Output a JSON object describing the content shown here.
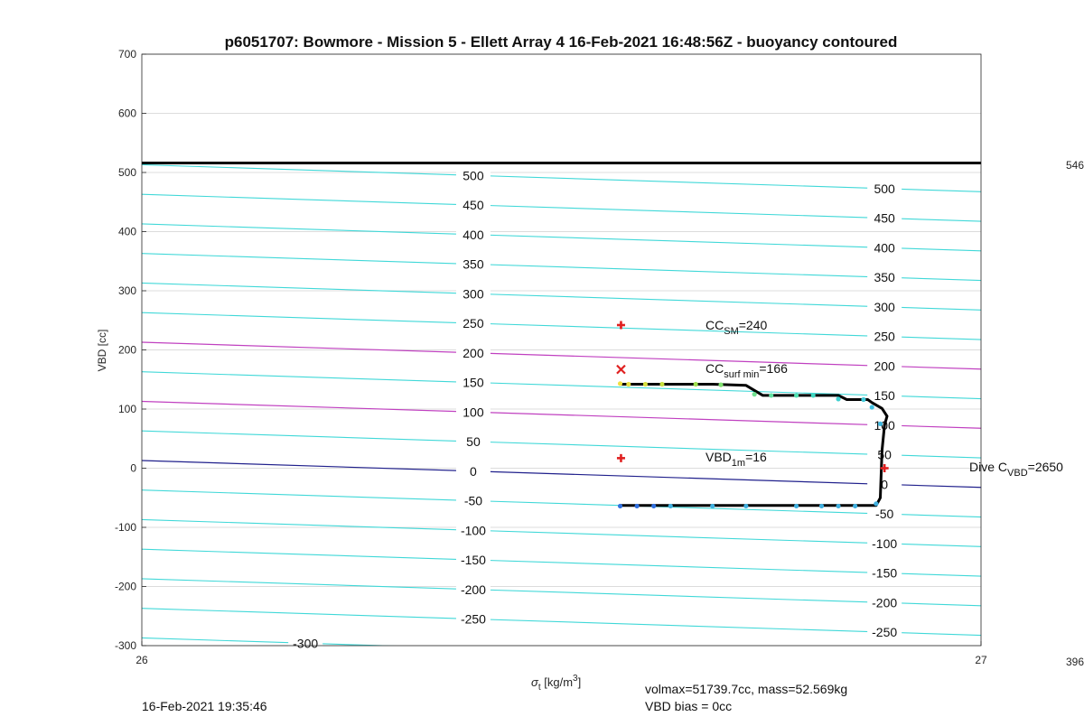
{
  "chart_data": {
    "type": "line",
    "title": "p6051707: Bowmore - Mission 5 - Ellett Array 4 16-Feb-2021 16:48:56Z - buoyancy contoured",
    "ylabel": "VBD [cc]",
    "xlabel_main": "σ",
    "xlabel_sub": "t",
    "xlabel_unit_a": " [kg/m",
    "xlabel_unit_sup": "3",
    "xlabel_unit_b": "]",
    "xlim": [
      26,
      27
    ],
    "ylim": [
      -300,
      700
    ],
    "x_ticks": [
      "26",
      "27"
    ],
    "y_ticks": [
      "700",
      "600",
      "500",
      "400",
      "300",
      "200",
      "100",
      "0",
      "-100",
      "-200",
      "-300"
    ],
    "right_axis_labels": {
      "top": "546",
      "bottom": "396"
    },
    "grid": true,
    "colors": {
      "contour": "#40d8d8",
      "highlight_contour": "#c040c0",
      "zero_contour": "#20208c",
      "vbd_max_line": "#000000",
      "profile": "#000000",
      "marker": "#e02020"
    },
    "vbd_max_line": 516,
    "contours": {
      "slope_cc_per_unit": -45.5,
      "y_at_x26_for_level_0": 13,
      "levels": [
        -300,
        -250,
        -200,
        -150,
        -100,
        -50,
        0,
        50,
        100,
        150,
        200,
        250,
        300,
        350,
        400,
        450,
        500
      ],
      "highlight_levels": [
        100,
        200
      ],
      "zero_level": 0,
      "labels_mid": [
        "500",
        "450",
        "400",
        "350",
        "300",
        "250",
        "200",
        "150",
        "100",
        "50",
        "0",
        "-50",
        "-100",
        "-150",
        "-200",
        "-250"
      ],
      "labels_right": [
        "500",
        "450",
        "400",
        "350",
        "300",
        "250",
        "200",
        "150",
        "100",
        "50",
        "0",
        "-50",
        "-100",
        "-150",
        "-200",
        "-250"
      ],
      "label_left": "-300",
      "label_mid_x": 26.395,
      "label_right_x": 26.885,
      "label_left_x": 26.195
    },
    "profile": {
      "x": [
        26.57,
        26.68,
        26.72,
        26.74,
        26.83,
        26.84,
        26.865,
        26.87,
        26.882,
        26.888,
        26.885,
        26.882,
        26.88,
        26.875,
        26.57
      ],
      "y": [
        142,
        142,
        140,
        123,
        123,
        116,
        116,
        111,
        101,
        88,
        73,
        30,
        -50,
        -63,
        -63
      ],
      "climb_points_x": [
        26.57,
        26.58,
        26.6,
        26.62,
        26.66,
        26.69,
        26.73,
        26.75,
        26.78,
        26.8,
        26.83,
        26.86,
        26.87,
        26.88
      ],
      "climb_points_y": [
        143,
        142,
        142,
        142,
        142,
        141,
        125,
        123,
        123,
        123,
        117,
        116,
        103,
        75
      ],
      "dive_points_x": [
        26.57,
        26.59,
        26.61,
        26.63,
        26.68,
        26.72,
        26.78,
        26.81,
        26.83,
        26.85,
        26.875
      ],
      "dive_points_y": [
        -64,
        -64,
        -64,
        -64,
        -64,
        -64,
        -64,
        -64,
        -64,
        -64,
        -60
      ]
    },
    "markers": [
      {
        "name": "cc-sm-marker",
        "shape": "plus",
        "x": 26.571,
        "y": 242
      },
      {
        "name": "cc-surf-min-marker",
        "shape": "cross",
        "x": 26.571,
        "y": 167
      },
      {
        "name": "vbd-1m-marker",
        "shape": "plus",
        "x": 26.571,
        "y": 17
      },
      {
        "name": "dive-cvbd-marker",
        "shape": "plus",
        "x": 26.885,
        "y": 0
      }
    ],
    "annotations": {
      "cc_sm": {
        "base": "CC",
        "sub": "SM",
        "rest": "=240"
      },
      "cc_surf_min": {
        "base": "CC",
        "sub": "surf min",
        "rest": "=166"
      },
      "vbd_1m": {
        "base": "VBD",
        "sub": "1m",
        "rest": "=16"
      },
      "dive_cvbd": {
        "base": "Dive C",
        "sub": "VBD",
        "rest": "=2650"
      }
    }
  },
  "footer": {
    "timestamp": "16-Feb-2021 19:35:46",
    "volmax": "volmax=51739.7cc, mass=52.569kg",
    "vbd_bias": "VBD bias = 0cc"
  }
}
